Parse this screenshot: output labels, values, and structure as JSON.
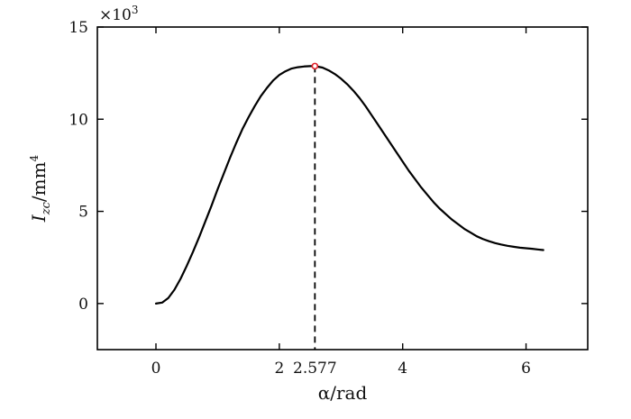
{
  "chart_data": {
    "type": "line",
    "x_axis": {
      "label": "α/rad",
      "range": [
        -0.95,
        7.0
      ],
      "ticks": [
        0,
        2,
        4,
        6
      ],
      "tick_labels": [
        "0",
        "2",
        "4",
        "6"
      ]
    },
    "y_axis": {
      "label_base": "I",
      "label_sub": "zc",
      "label_unit": "/mm",
      "label_sup": "4",
      "range": [
        -2.5,
        15
      ],
      "ticks": [
        0,
        5,
        10,
        15
      ],
      "tick_labels": [
        "0",
        "5",
        "10",
        "15"
      ],
      "multiplier_base": "×10",
      "multiplier_exp": "3"
    },
    "series": [
      {
        "color": "#000000",
        "points": [
          [
            0,
            0
          ],
          [
            0.1,
            0.05
          ],
          [
            0.2,
            0.3
          ],
          [
            0.3,
            0.75
          ],
          [
            0.4,
            1.35
          ],
          [
            0.5,
            2.05
          ],
          [
            0.6,
            2.8
          ],
          [
            0.7,
            3.6
          ],
          [
            0.8,
            4.45
          ],
          [
            0.9,
            5.3
          ],
          [
            1.0,
            6.2
          ],
          [
            1.1,
            7.05
          ],
          [
            1.2,
            7.9
          ],
          [
            1.3,
            8.7
          ],
          [
            1.4,
            9.45
          ],
          [
            1.5,
            10.1
          ],
          [
            1.6,
            10.7
          ],
          [
            1.7,
            11.25
          ],
          [
            1.8,
            11.7
          ],
          [
            1.9,
            12.1
          ],
          [
            2.0,
            12.4
          ],
          [
            2.1,
            12.6
          ],
          [
            2.2,
            12.75
          ],
          [
            2.3,
            12.82
          ],
          [
            2.4,
            12.86
          ],
          [
            2.5,
            12.88
          ],
          [
            2.577,
            12.88
          ],
          [
            2.7,
            12.8
          ],
          [
            2.8,
            12.65
          ],
          [
            2.9,
            12.45
          ],
          [
            3.0,
            12.2
          ],
          [
            3.1,
            11.9
          ],
          [
            3.2,
            11.55
          ],
          [
            3.3,
            11.15
          ],
          [
            3.4,
            10.7
          ],
          [
            3.5,
            10.2
          ],
          [
            3.6,
            9.7
          ],
          [
            3.7,
            9.2
          ],
          [
            3.8,
            8.7
          ],
          [
            3.9,
            8.2
          ],
          [
            4.0,
            7.7
          ],
          [
            4.1,
            7.2
          ],
          [
            4.2,
            6.75
          ],
          [
            4.3,
            6.3
          ],
          [
            4.4,
            5.9
          ],
          [
            4.5,
            5.5
          ],
          [
            4.6,
            5.15
          ],
          [
            4.7,
            4.85
          ],
          [
            4.8,
            4.55
          ],
          [
            4.9,
            4.3
          ],
          [
            5.0,
            4.05
          ],
          [
            5.1,
            3.85
          ],
          [
            5.2,
            3.65
          ],
          [
            5.3,
            3.5
          ],
          [
            5.4,
            3.38
          ],
          [
            5.5,
            3.28
          ],
          [
            5.6,
            3.2
          ],
          [
            5.7,
            3.13
          ],
          [
            5.8,
            3.08
          ],
          [
            5.9,
            3.03
          ],
          [
            6.0,
            3.0
          ],
          [
            6.1,
            2.97
          ],
          [
            6.2,
            2.93
          ],
          [
            6.28,
            2.9
          ]
        ]
      }
    ],
    "annotation": {
      "x": 2.577,
      "y": 12.88,
      "x_label": "2.577",
      "x_label_color": "#1a1adf",
      "marker_color": "#e0202a",
      "line_style": "dashed"
    },
    "grid": false,
    "legend": "none"
  }
}
